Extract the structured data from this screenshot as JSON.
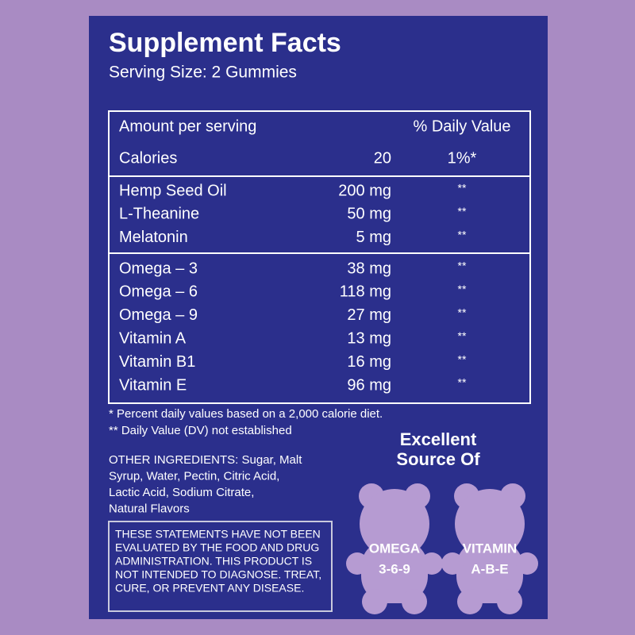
{
  "header": {
    "title": "Supplement Facts",
    "serving_size": "Serving Size: 2 Gummies"
  },
  "table": {
    "columns": [
      "Amount per serving",
      "% Daily Value"
    ],
    "calories": {
      "label": "Calories",
      "amount": "20",
      "dv": "1%*"
    },
    "groups": [
      [
        [
          "Hemp Seed Oil",
          "200 mg",
          "**"
        ],
        [
          "L-Theanine",
          "50 mg",
          "**"
        ],
        [
          "Melatonin",
          "5 mg",
          "**"
        ]
      ],
      [
        [
          "Omega – 3",
          "38 mg",
          "**"
        ],
        [
          "Omega – 6",
          "118 mg",
          "**"
        ],
        [
          "Omega – 9",
          "27 mg",
          "**"
        ],
        [
          "Vitamin A",
          "13 mg",
          "**"
        ],
        [
          "Vitamin B1",
          "16 mg",
          "**"
        ],
        [
          "Vitamin E",
          "96 mg",
          "**"
        ]
      ]
    ]
  },
  "footnotes": [
    "* Percent daily values based on a 2,000 calorie diet.",
    "** Daily Value (DV) not established"
  ],
  "other_ingredients": [
    "OTHER INGREDIENTS: Sugar, Malt",
    "Syrup, Water, Pectin, Citric Acid,",
    "Lactic Acid, Sodium Citrate,",
    "Natural Flavors"
  ],
  "disclaimer": [
    "THESE STATEMENTS HAVE NOT BEEN",
    "EVALUATED BY THE FOOD AND DRUG",
    "ADMINISTRATION. THIS PRODUCT IS",
    "NOT INTENDED TO DIAGNOSE. TREAT,",
    "CURE, OR PREVENT ANY DISEASE."
  ],
  "badge": {
    "title": [
      "Excellent",
      "Source Of"
    ],
    "bears": [
      [
        "OMEGA",
        "3-6-9"
      ],
      [
        "VITAMIN",
        "A-B-E"
      ]
    ]
  }
}
